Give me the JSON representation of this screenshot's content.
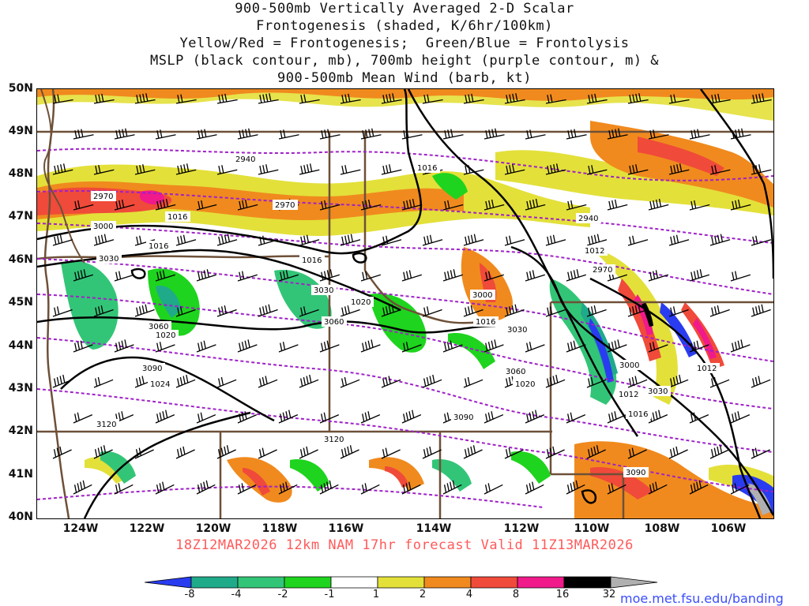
{
  "title": {
    "line1": "900-500mb Vertically Averaged 2-D Scalar",
    "line2": "Frontogenesis (shaded, K/6hr/100km)",
    "line3": "Yellow/Red = Frontogenesis;  Green/Blue = Frontolysis",
    "line4": "MSLP (black contour, mb), 700mb height (purple contour, m) &",
    "line5": "900-500mb Mean Wind (barb, kt)"
  },
  "validity": "18Z12MAR2026 12km NAM 17hr forecast Valid 11Z13MAR2026",
  "credit_url": "moe.met.fsu.edu/banding",
  "latitude_labels": [
    "50N",
    "49N",
    "48N",
    "47N",
    "46N",
    "45N",
    "44N",
    "43N",
    "42N",
    "41N",
    "40N"
  ],
  "longitude_labels": [
    "124W",
    "122W",
    "120W",
    "118W",
    "116W",
    "114W",
    "112W",
    "110W",
    "108W",
    "106W"
  ],
  "colorbar": {
    "labels": [
      "-8",
      "-4",
      "-2",
      "-1",
      "1",
      "2",
      "4",
      "8",
      "16",
      "32"
    ],
    "colors": [
      "#2a3cf0",
      "#1faa8a",
      "#33c577",
      "#1ed41e",
      "#ffffff",
      "#e3e03a",
      "#f08a1e",
      "#f04a3a",
      "#f01a8a",
      "#000000",
      "#b0b0b0"
    ]
  },
  "map": {
    "colors": {
      "mslp": "#000000",
      "height": "#a020c8",
      "state_border": "#6e5038",
      "barb": "#000000",
      "frontogenesis_low": "#e3e03a",
      "frontogenesis_mid": "#f08a1e",
      "frontogenesis_high": "#f04a3a",
      "frontogenesis_max": "#f01a8a",
      "frontolysis_low": "#1ed41e",
      "frontolysis_mid": "#33c577",
      "frontolysis_high": "#1faa8a",
      "frontolysis_max": "#2a3cf0"
    },
    "mslp_labels": [
      "1016",
      "1016",
      "1016",
      "1016",
      "1016",
      "1016",
      "1020",
      "1020",
      "1020",
      "1024",
      "1012",
      "1012",
      "1012"
    ],
    "height_labels": [
      "2940",
      "2970",
      "2970",
      "2940",
      "2970",
      "3000",
      "3000",
      "3030",
      "3030",
      "3030",
      "3060",
      "3060",
      "3060",
      "3090",
      "3120",
      "3120",
      "3090",
      "3030",
      "3000",
      "3090"
    ]
  }
}
